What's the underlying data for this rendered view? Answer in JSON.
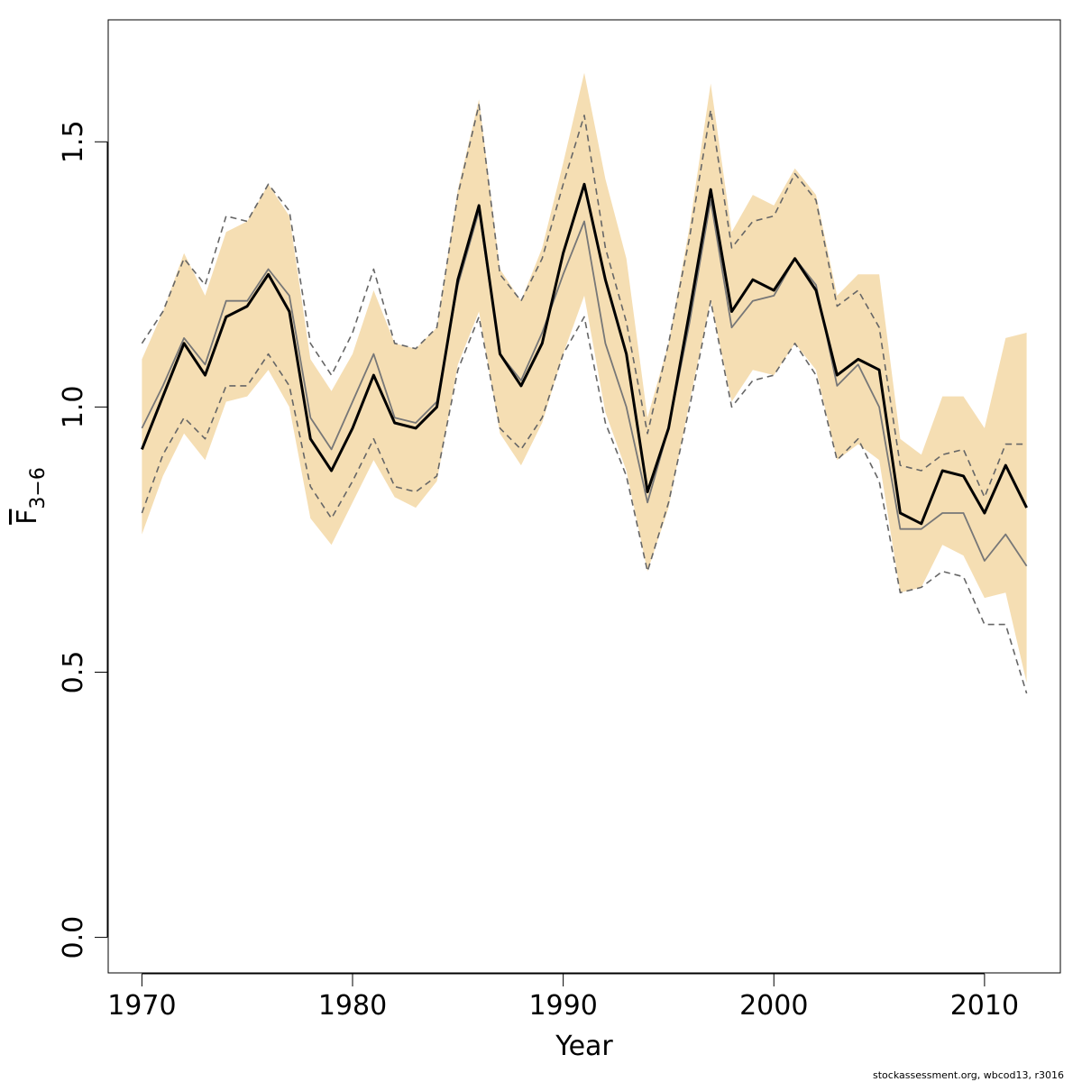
{
  "chart_data": {
    "type": "line",
    "title": "",
    "xlabel": "Year",
    "ylabel": {
      "main": "F",
      "subscript": "3−6"
    },
    "xlim": [
      1968.4,
      2013.6
    ],
    "ylim": [
      -0.067,
      1.73
    ],
    "x_ticks": [
      1970,
      1980,
      1990,
      2000,
      2010
    ],
    "y_ticks": [
      0.0,
      0.5,
      1.0,
      1.5
    ],
    "y_tick_labels": [
      "0.0",
      "0.5",
      "1.0",
      "1.5"
    ],
    "grid": false,
    "x": [
      1970,
      1971,
      1972,
      1973,
      1974,
      1975,
      1976,
      1977,
      1978,
      1979,
      1980,
      1981,
      1982,
      1983,
      1984,
      1985,
      1986,
      1987,
      1988,
      1989,
      1990,
      1991,
      1992,
      1993,
      1994,
      1995,
      1996,
      1997,
      1998,
      1999,
      2000,
      2001,
      2002,
      2003,
      2004,
      2005,
      2006,
      2007,
      2008,
      2009,
      2010,
      2011,
      2012
    ],
    "series": [
      {
        "role": "confidence-band",
        "color": "#f5deb3",
        "upper": [
          1.09,
          1.18,
          1.29,
          1.21,
          1.33,
          1.35,
          1.42,
          1.36,
          1.09,
          1.03,
          1.1,
          1.22,
          1.12,
          1.11,
          1.15,
          1.41,
          1.58,
          1.26,
          1.2,
          1.3,
          1.46,
          1.63,
          1.43,
          1.28,
          0.98,
          1.12,
          1.34,
          1.61,
          1.33,
          1.4,
          1.38,
          1.45,
          1.4,
          1.21,
          1.25,
          1.25,
          0.94,
          0.91,
          1.02,
          1.02,
          0.96,
          1.13,
          1.14
        ],
        "lower": [
          0.76,
          0.87,
          0.95,
          0.9,
          1.01,
          1.02,
          1.07,
          1.0,
          0.79,
          0.74,
          0.82,
          0.9,
          0.83,
          0.81,
          0.86,
          1.08,
          1.18,
          0.95,
          0.89,
          0.97,
          1.1,
          1.21,
          0.99,
          0.88,
          0.69,
          0.81,
          1.01,
          1.2,
          1.01,
          1.07,
          1.06,
          1.12,
          1.07,
          0.9,
          0.93,
          0.9,
          0.65,
          0.66,
          0.74,
          0.72,
          0.64,
          0.65,
          0.48
        ]
      },
      {
        "role": "upper-dashed",
        "color": "#666666",
        "values": [
          1.12,
          1.18,
          1.28,
          1.23,
          1.36,
          1.35,
          1.42,
          1.37,
          1.12,
          1.06,
          1.14,
          1.26,
          1.12,
          1.11,
          1.15,
          1.4,
          1.57,
          1.25,
          1.2,
          1.28,
          1.42,
          1.55,
          1.3,
          1.16,
          0.95,
          1.12,
          1.32,
          1.56,
          1.3,
          1.35,
          1.36,
          1.44,
          1.39,
          1.19,
          1.22,
          1.15,
          0.89,
          0.88,
          0.91,
          0.92,
          0.83,
          0.93,
          0.93
        ]
      },
      {
        "role": "lower-dashed",
        "color": "#666666",
        "values": [
          0.8,
          0.91,
          0.98,
          0.94,
          1.04,
          1.04,
          1.1,
          1.04,
          0.85,
          0.79,
          0.86,
          0.94,
          0.85,
          0.84,
          0.87,
          1.07,
          1.17,
          0.96,
          0.92,
          0.98,
          1.1,
          1.17,
          0.97,
          0.87,
          0.69,
          0.82,
          1.0,
          1.2,
          1.0,
          1.05,
          1.06,
          1.12,
          1.06,
          0.9,
          0.94,
          0.86,
          0.65,
          0.66,
          0.69,
          0.68,
          0.59,
          0.59,
          0.46
        ]
      },
      {
        "role": "grey-line",
        "color": "#777777",
        "values": [
          0.96,
          1.04,
          1.13,
          1.08,
          1.2,
          1.2,
          1.26,
          1.21,
          0.98,
          0.92,
          1.01,
          1.1,
          0.98,
          0.97,
          1.01,
          1.23,
          1.37,
          1.1,
          1.05,
          1.14,
          1.25,
          1.35,
          1.12,
          1.0,
          0.82,
          0.96,
          1.16,
          1.39,
          1.15,
          1.2,
          1.21,
          1.28,
          1.23,
          1.04,
          1.08,
          1.0,
          0.77,
          0.77,
          0.8,
          0.8,
          0.71,
          0.76,
          0.7
        ]
      },
      {
        "role": "main-line",
        "color": "#000000",
        "values": [
          0.92,
          1.02,
          1.12,
          1.06,
          1.17,
          1.19,
          1.25,
          1.18,
          0.94,
          0.88,
          0.96,
          1.06,
          0.97,
          0.96,
          1.0,
          1.24,
          1.38,
          1.1,
          1.04,
          1.12,
          1.29,
          1.42,
          1.24,
          1.1,
          0.84,
          0.96,
          1.18,
          1.41,
          1.18,
          1.24,
          1.22,
          1.28,
          1.22,
          1.06,
          1.09,
          1.07,
          0.8,
          0.78,
          0.88,
          0.87,
          0.8,
          0.89,
          0.81
        ]
      }
    ]
  },
  "credit": "stockassessment.org, wbcod13, r3016"
}
